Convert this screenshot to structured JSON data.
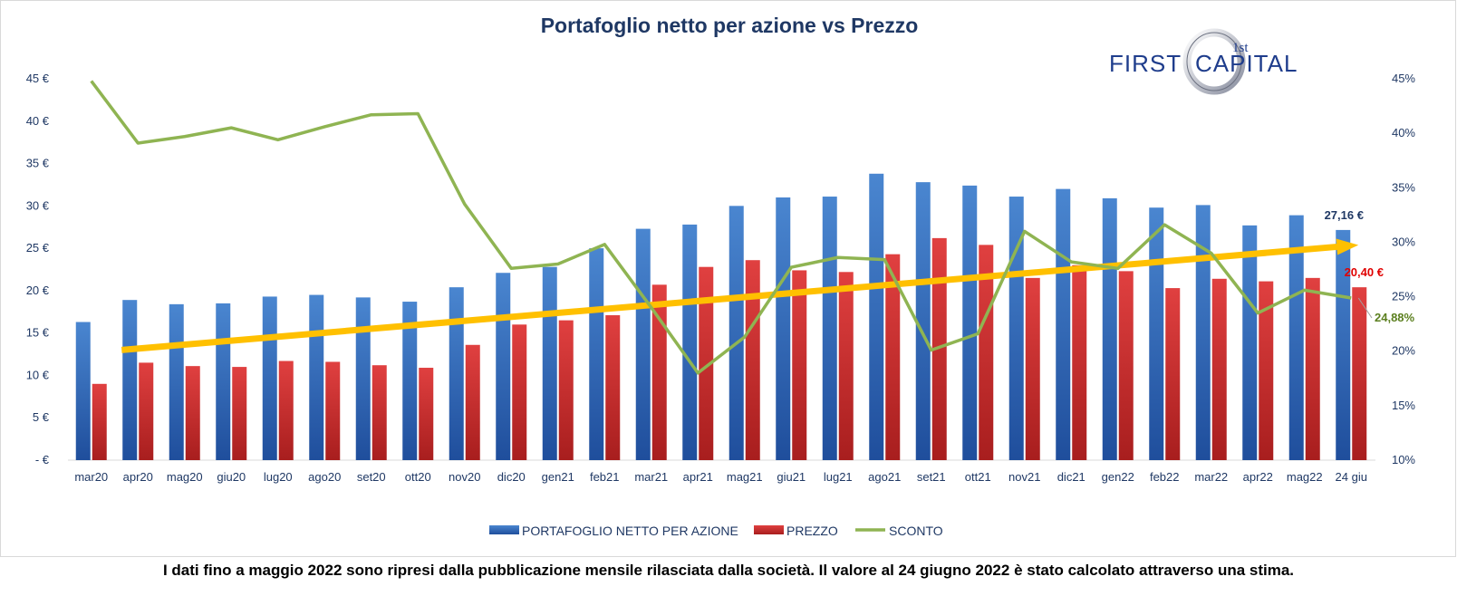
{
  "chart_data": {
    "type": "bar",
    "title": "Portafoglio netto per azione vs Prezzo",
    "categories": [
      "mar20",
      "apr20",
      "mag20",
      "giu20",
      "lug20",
      "ago20",
      "set20",
      "ott20",
      "nov20",
      "dic20",
      "gen21",
      "feb21",
      "mar21",
      "apr21",
      "mag21",
      "giu21",
      "lug21",
      "ago21",
      "set21",
      "ott21",
      "nov21",
      "dic21",
      "gen22",
      "feb22",
      "mar22",
      "apr22",
      "mag22",
      "24 giu"
    ],
    "series": [
      {
        "name": "PORTAFOGLIO NETTO PER AZIONE",
        "type": "bar",
        "axis": "left",
        "color": "#3a78c8",
        "values": [
          16.3,
          18.9,
          18.4,
          18.5,
          19.3,
          19.5,
          19.2,
          18.7,
          20.4,
          22.1,
          22.8,
          25.0,
          27.3,
          27.8,
          30.0,
          31.0,
          31.1,
          33.8,
          32.8,
          32.4,
          31.1,
          32.0,
          30.9,
          29.8,
          30.1,
          27.7,
          28.9,
          27.16
        ]
      },
      {
        "name": "PREZZO",
        "type": "bar",
        "axis": "left",
        "color": "#d93636",
        "values": [
          9.0,
          11.5,
          11.1,
          11.0,
          11.7,
          11.6,
          11.2,
          10.9,
          13.6,
          16.0,
          16.5,
          17.1,
          20.7,
          22.8,
          23.6,
          22.4,
          22.2,
          24.3,
          26.2,
          25.4,
          21.5,
          23.0,
          22.3,
          20.3,
          21.4,
          21.1,
          21.5,
          20.4
        ]
      },
      {
        "name": "SCONTO",
        "type": "line",
        "axis": "right",
        "color": "#8fb452",
        "values": [
          44.8,
          39.1,
          39.7,
          40.5,
          39.4,
          40.6,
          41.7,
          41.8,
          33.5,
          27.6,
          28.0,
          29.8,
          24.0,
          18.0,
          21.3,
          27.7,
          28.6,
          28.4,
          20.1,
          21.6,
          31.0,
          28.2,
          27.6,
          31.6,
          29.0,
          23.5,
          25.6,
          24.88
        ]
      }
    ],
    "trend": {
      "color": "#ffc000",
      "from": 13.0,
      "to": 25.3,
      "start_index": 1,
      "end_index": 27
    },
    "y_left": {
      "min": 0,
      "max": 45,
      "ticks": [
        "- €",
        "5 €",
        "10 €",
        "15 €",
        "20 €",
        "25 €",
        "30 €",
        "35 €",
        "40 €",
        "45 €"
      ]
    },
    "y_right": {
      "min": 10,
      "max": 45,
      "ticks": [
        "10%",
        "15%",
        "20%",
        "25%",
        "30%",
        "35%",
        "40%",
        "45%"
      ]
    },
    "annotations": {
      "npa_last": "27,16 €",
      "price_last": "20,40 €",
      "discount_last": "24,88%"
    },
    "legend": {
      "position": "bottom"
    },
    "grid": false
  },
  "logo": {
    "main_left": "FIRST",
    "main_right": "CAPITAL",
    "small": "1st"
  },
  "footer": {
    "note": "I dati fino a maggio 2022 sono ripresi dalla pubblicazione mensile rilasciata dalla società. Il valore al 24 giugno 2022 è stato calcolato attraverso una stima."
  }
}
